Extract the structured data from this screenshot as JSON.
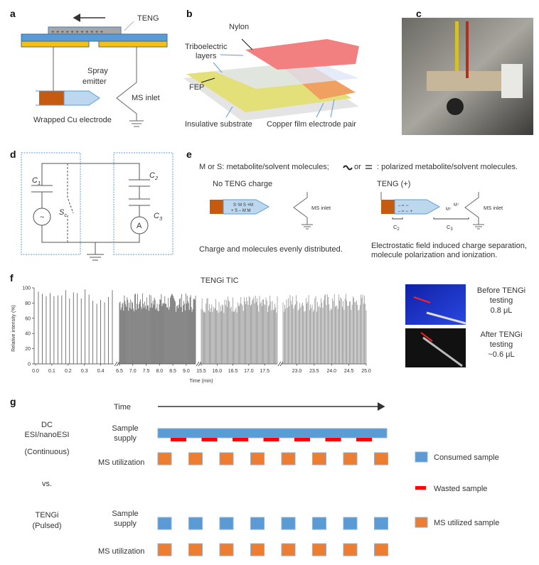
{
  "panels": {
    "a": {
      "label": "a",
      "teng": "TENG",
      "spray_emitter_1": "Spray",
      "spray_emitter_2": "emitter",
      "ms_inlet": "MS inlet",
      "electrode": "Wrapped Cu electrode"
    },
    "b": {
      "label": "b",
      "nylon": "Nylon",
      "tribo_1": "Triboelectric",
      "tribo_2": "layers",
      "fep": "FEP",
      "substrate": "Insulative substrate",
      "copper": "Copper film electrode pair"
    },
    "c": {
      "label": "c"
    },
    "d": {
      "label": "d",
      "c1": "C",
      "c1_sub": "1",
      "c2": "C",
      "c2_sub": "2",
      "c3": "C",
      "c3_sub": "3",
      "switch": "S",
      "switch_sub": "c",
      "source": "~",
      "ammeter": "A"
    },
    "e": {
      "label": "e",
      "legend_left": "M or S: metabolite/solvent  molecules;",
      "legend_or": "or",
      "legend_right": ": polarized metabolite/solvent molecules.",
      "left_title": "No TENG charge",
      "right_title": "TENG (+)",
      "ms_inlet": "MS inlet",
      "left_caption": "Charge and molecules evenly distributed.",
      "right_caption_1": "Electrostatic field induced charge separation,",
      "right_caption_2": "molecule polarization and ionization.",
      "c2": "C",
      "c2_sub": "2",
      "c3": "C",
      "c3_sub": "3",
      "ion": "M⁺"
    },
    "f": {
      "label": "f",
      "before_1": "Before TENGi",
      "before_2": "testing",
      "before_3": "0.8 μL",
      "after_1": "After TENGi",
      "after_2": "testing",
      "after_3": "~0.6 μL"
    },
    "g": {
      "label": "g",
      "time": "Time",
      "dc_1": "DC",
      "dc_2": "ESI/nanoESI",
      "continuous": "(Continuous)",
      "vs": "vs.",
      "tengi": "TENGi",
      "pulsed": "(Pulsed)",
      "sample_1": "Sample",
      "sample_2": "supply",
      "ms_util": "MS utilization",
      "legend": [
        {
          "label": "Consumed sample",
          "color": "#5b9bd5"
        },
        {
          "label": "Wasted sample",
          "color": "#ff0000"
        },
        {
          "label": "MS utilized sample",
          "color": "#ed7d31"
        }
      ],
      "pulse_count": 8,
      "waste_count": 7
    }
  },
  "chart_data": {
    "type": "bar",
    "title": "TENGi TIC",
    "xlabel": "Time (min)",
    "ylabel": "Relative intensity (%)",
    "ylim": [
      0,
      100
    ],
    "yticks": [
      "0",
      "20",
      "40",
      "60",
      "80",
      "100"
    ],
    "segments": [
      {
        "range": [
          0.0,
          0.48
        ],
        "ticks": [
          "0.0",
          "0.1",
          "0.2",
          "0.3",
          "0.4"
        ],
        "peaks": [
          95,
          92,
          89,
          93,
          89,
          90,
          90,
          97,
          86,
          94,
          93,
          86,
          98,
          91,
          83,
          79,
          84,
          81,
          88,
          97
        ]
      },
      {
        "range": [
          6.5,
          9.35
        ],
        "ticks": [
          "6.5",
          "7.0",
          "7.5",
          "8.0",
          "8.5",
          "9.0"
        ],
        "peak_count": 110,
        "intensity_range": [
          68,
          93
        ]
      },
      {
        "range": [
          15.5,
          17.9
        ],
        "ticks": [
          "15.5",
          "16.0",
          "16.5",
          "17.0",
          "17.5"
        ],
        "peak_count": 95,
        "intensity_range": [
          67,
          90
        ]
      },
      {
        "range": [
          22.6,
          25.0
        ],
        "ticks": [
          "23.0",
          "23.5",
          "24.0",
          "24.5",
          "25.0"
        ],
        "peak_count": 95,
        "intensity_range": [
          68,
          93
        ]
      }
    ]
  }
}
